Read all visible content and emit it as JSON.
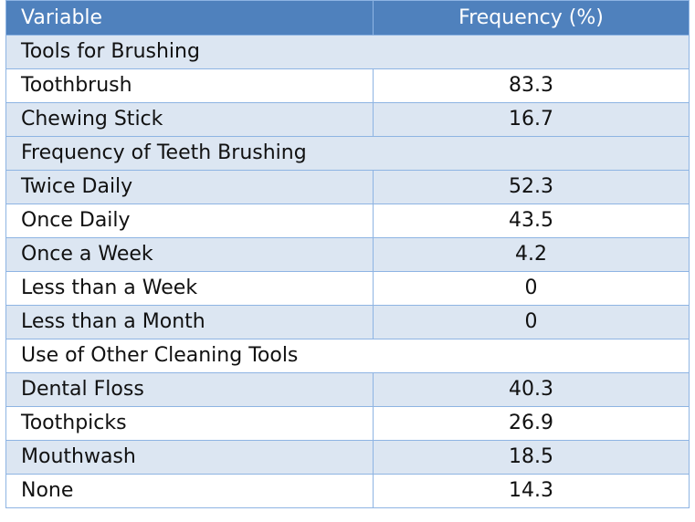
{
  "header": {
    "variable": "Variable",
    "frequency": "Frequency (%)"
  },
  "rows": [
    {
      "type": "section",
      "label": "Tools for Brushing"
    },
    {
      "type": "data",
      "label": "Toothbrush",
      "value": "83.3"
    },
    {
      "type": "data",
      "label": "Chewing Stick",
      "value": "16.7"
    },
    {
      "type": "section",
      "label": "Frequency of Teeth Brushing"
    },
    {
      "type": "data",
      "label": "Twice Daily",
      "value": "52.3"
    },
    {
      "type": "data",
      "label": "Once Daily",
      "value": "43.5"
    },
    {
      "type": "data",
      "label": "Once a Week",
      "value": "4.2"
    },
    {
      "type": "data",
      "label": "Less than a Week",
      "value": "0"
    },
    {
      "type": "data",
      "label": "Less than a Month",
      "value": "0"
    },
    {
      "type": "section",
      "label": "Use of Other Cleaning Tools"
    },
    {
      "type": "data",
      "label": "Dental Floss",
      "value": "40.3"
    },
    {
      "type": "data",
      "label": "Toothpicks",
      "value": "26.9"
    },
    {
      "type": "data",
      "label": "Mouthwash",
      "value": "18.5"
    },
    {
      "type": "data",
      "label": "None",
      "value": "14.3"
    }
  ],
  "colors": {
    "header_bg": "#4f81bd",
    "band_bg": "#dce6f2",
    "border": "#8eb4e3"
  }
}
